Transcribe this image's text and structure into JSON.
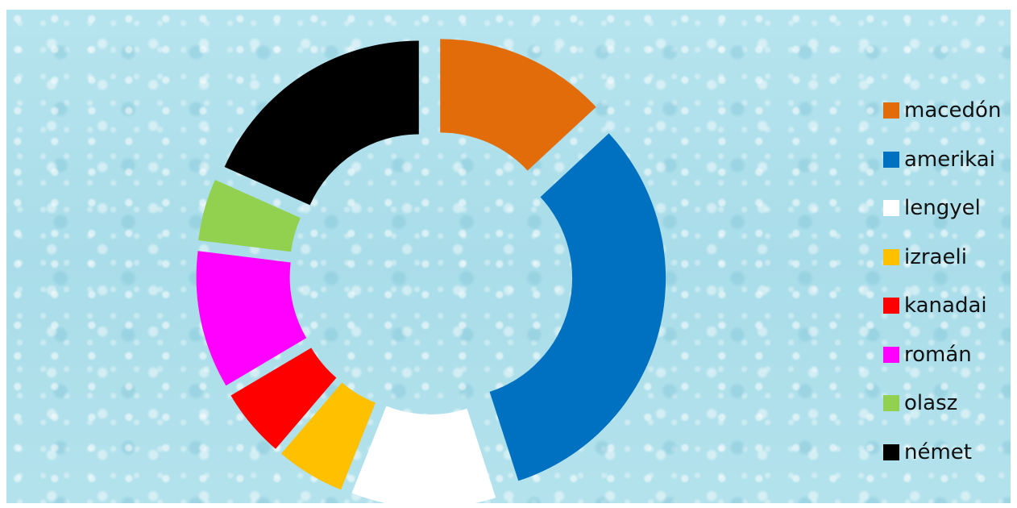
{
  "chart_data": {
    "type": "donut",
    "title": "",
    "categories": [
      "macedón",
      "amerikai",
      "lengyel",
      "izraeli",
      "kanadai",
      "román",
      "olasz",
      "német"
    ],
    "values": [
      12.5,
      30.5,
      10.5,
      5.0,
      5.0,
      10.0,
      4.5,
      17.5
    ],
    "colors": [
      "#E36C0A",
      "#0070C0",
      "#FFFFFF",
      "#FFC000",
      "#FF0000",
      "#FF00FF",
      "#92D050",
      "#000000"
    ],
    "legend_position": "right",
    "exploded": true
  }
}
